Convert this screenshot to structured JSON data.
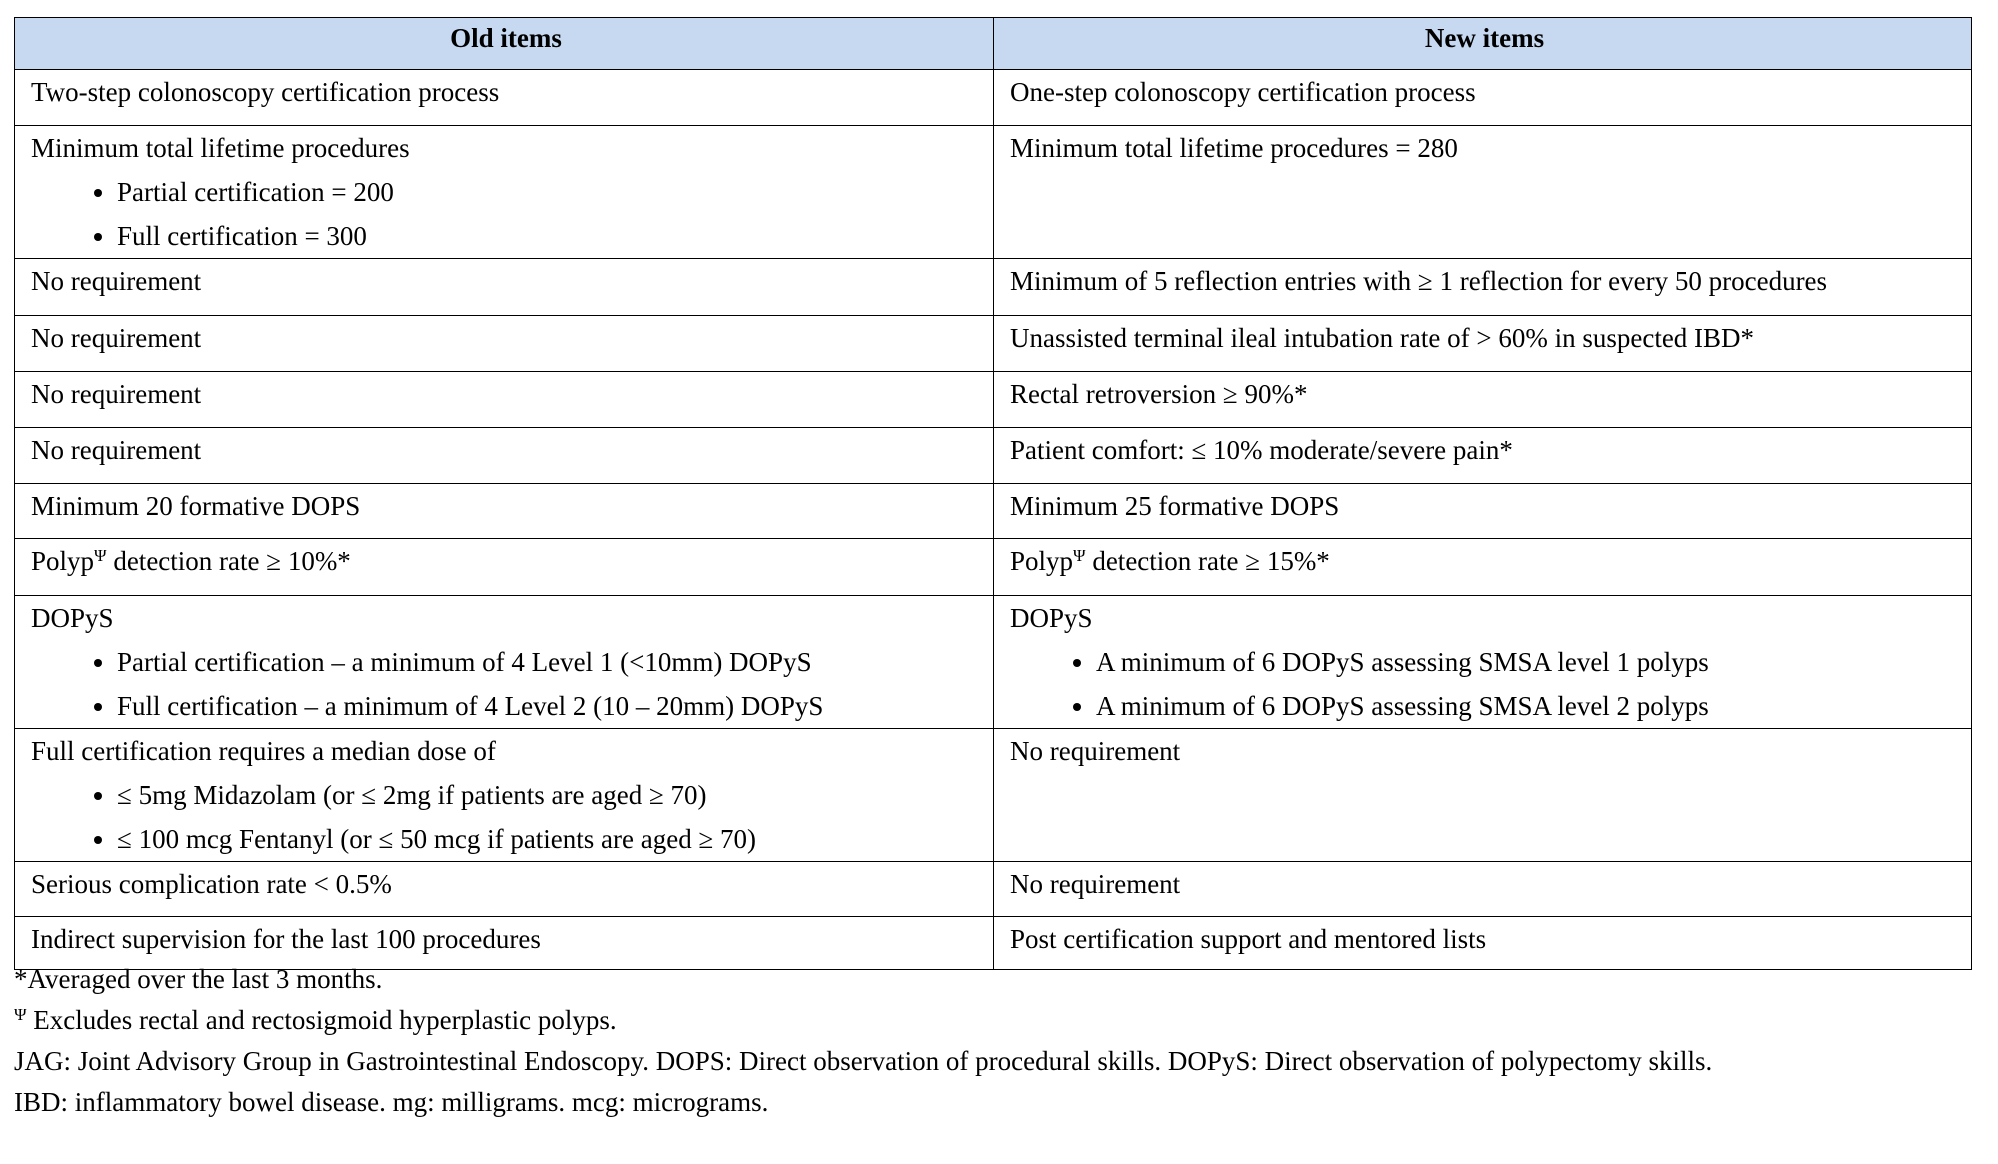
{
  "table": {
    "headers": [
      "Old items",
      "New items"
    ],
    "rows": [
      [
        {
          "text": "Two-step colonoscopy certification process"
        },
        {
          "text": "One-step colonoscopy certification process"
        }
      ],
      [
        {
          "text": "Minimum total lifetime procedures",
          "bullets": [
            "Partial certification = 200",
            "Full certification = 300"
          ]
        },
        {
          "text": "Minimum total lifetime procedures = 280"
        }
      ],
      [
        {
          "text": "No requirement"
        },
        {
          "text": "Minimum of 5 reflection entries with ≥ 1 reflection for every 50 procedures"
        }
      ],
      [
        {
          "text": "No requirement"
        },
        {
          "text": "Unassisted terminal ileal intubation rate of > 60% in suspected IBD*"
        }
      ],
      [
        {
          "text": "No requirement"
        },
        {
          "text": "Rectal retroversion ≥ 90%*"
        }
      ],
      [
        {
          "text": "No requirement"
        },
        {
          "text": "Patient comfort: ≤ 10% moderate/severe pain*"
        }
      ],
      [
        {
          "text": "Minimum 20 formative DOPS"
        },
        {
          "text": "Minimum 25 formative DOPS"
        }
      ],
      [
        {
          "text": "Polyp",
          "sup": "Ψ",
          "after": " detection rate ≥ 10%*"
        },
        {
          "text": "Polyp",
          "sup": "Ψ",
          "after": " detection rate ≥ 15%*"
        }
      ],
      [
        {
          "text": "DOPyS",
          "bullets": [
            "Partial certification – a minimum of 4 Level 1 (<10mm) DOPyS",
            "Full certification – a minimum of 4 Level 2 (10 – 20mm) DOPyS"
          ]
        },
        {
          "text": "DOPyS",
          "bullets": [
            "A minimum of 6 DOPyS assessing SMSA level 1 polyps",
            "A minimum of 6 DOPyS assessing SMSA level 2 polyps"
          ]
        }
      ],
      [
        {
          "text": "Full certification requires a median dose of",
          "bullets": [
            "≤ 5mg Midazolam (or ≤ 2mg if patients are aged ≥ 70)",
            "≤ 100 mcg Fentanyl (or ≤ 50 mcg if patients are aged ≥ 70)"
          ]
        },
        {
          "text": "No requirement"
        }
      ],
      [
        {
          "text": "Serious complication rate < 0.5%"
        },
        {
          "text": "No requirement"
        }
      ],
      [
        {
          "text": "Indirect supervision for the last 100 procedures"
        },
        {
          "text": "Post certification support and mentored lists"
        }
      ]
    ]
  },
  "footnotes": [
    {
      "text": "*Averaged over the last 3 months."
    },
    {
      "sup": "Ψ",
      "after": " Excludes rectal and rectosigmoid hyperplastic polyps."
    },
    {
      "text": "JAG: Joint Advisory Group in Gastrointestinal Endoscopy. DOPS: Direct observation of procedural skills. DOPyS: Direct observation of polypectomy skills."
    },
    {
      "text": "IBD: inflammatory bowel disease. mg: milligrams. mcg: micrograms."
    }
  ]
}
